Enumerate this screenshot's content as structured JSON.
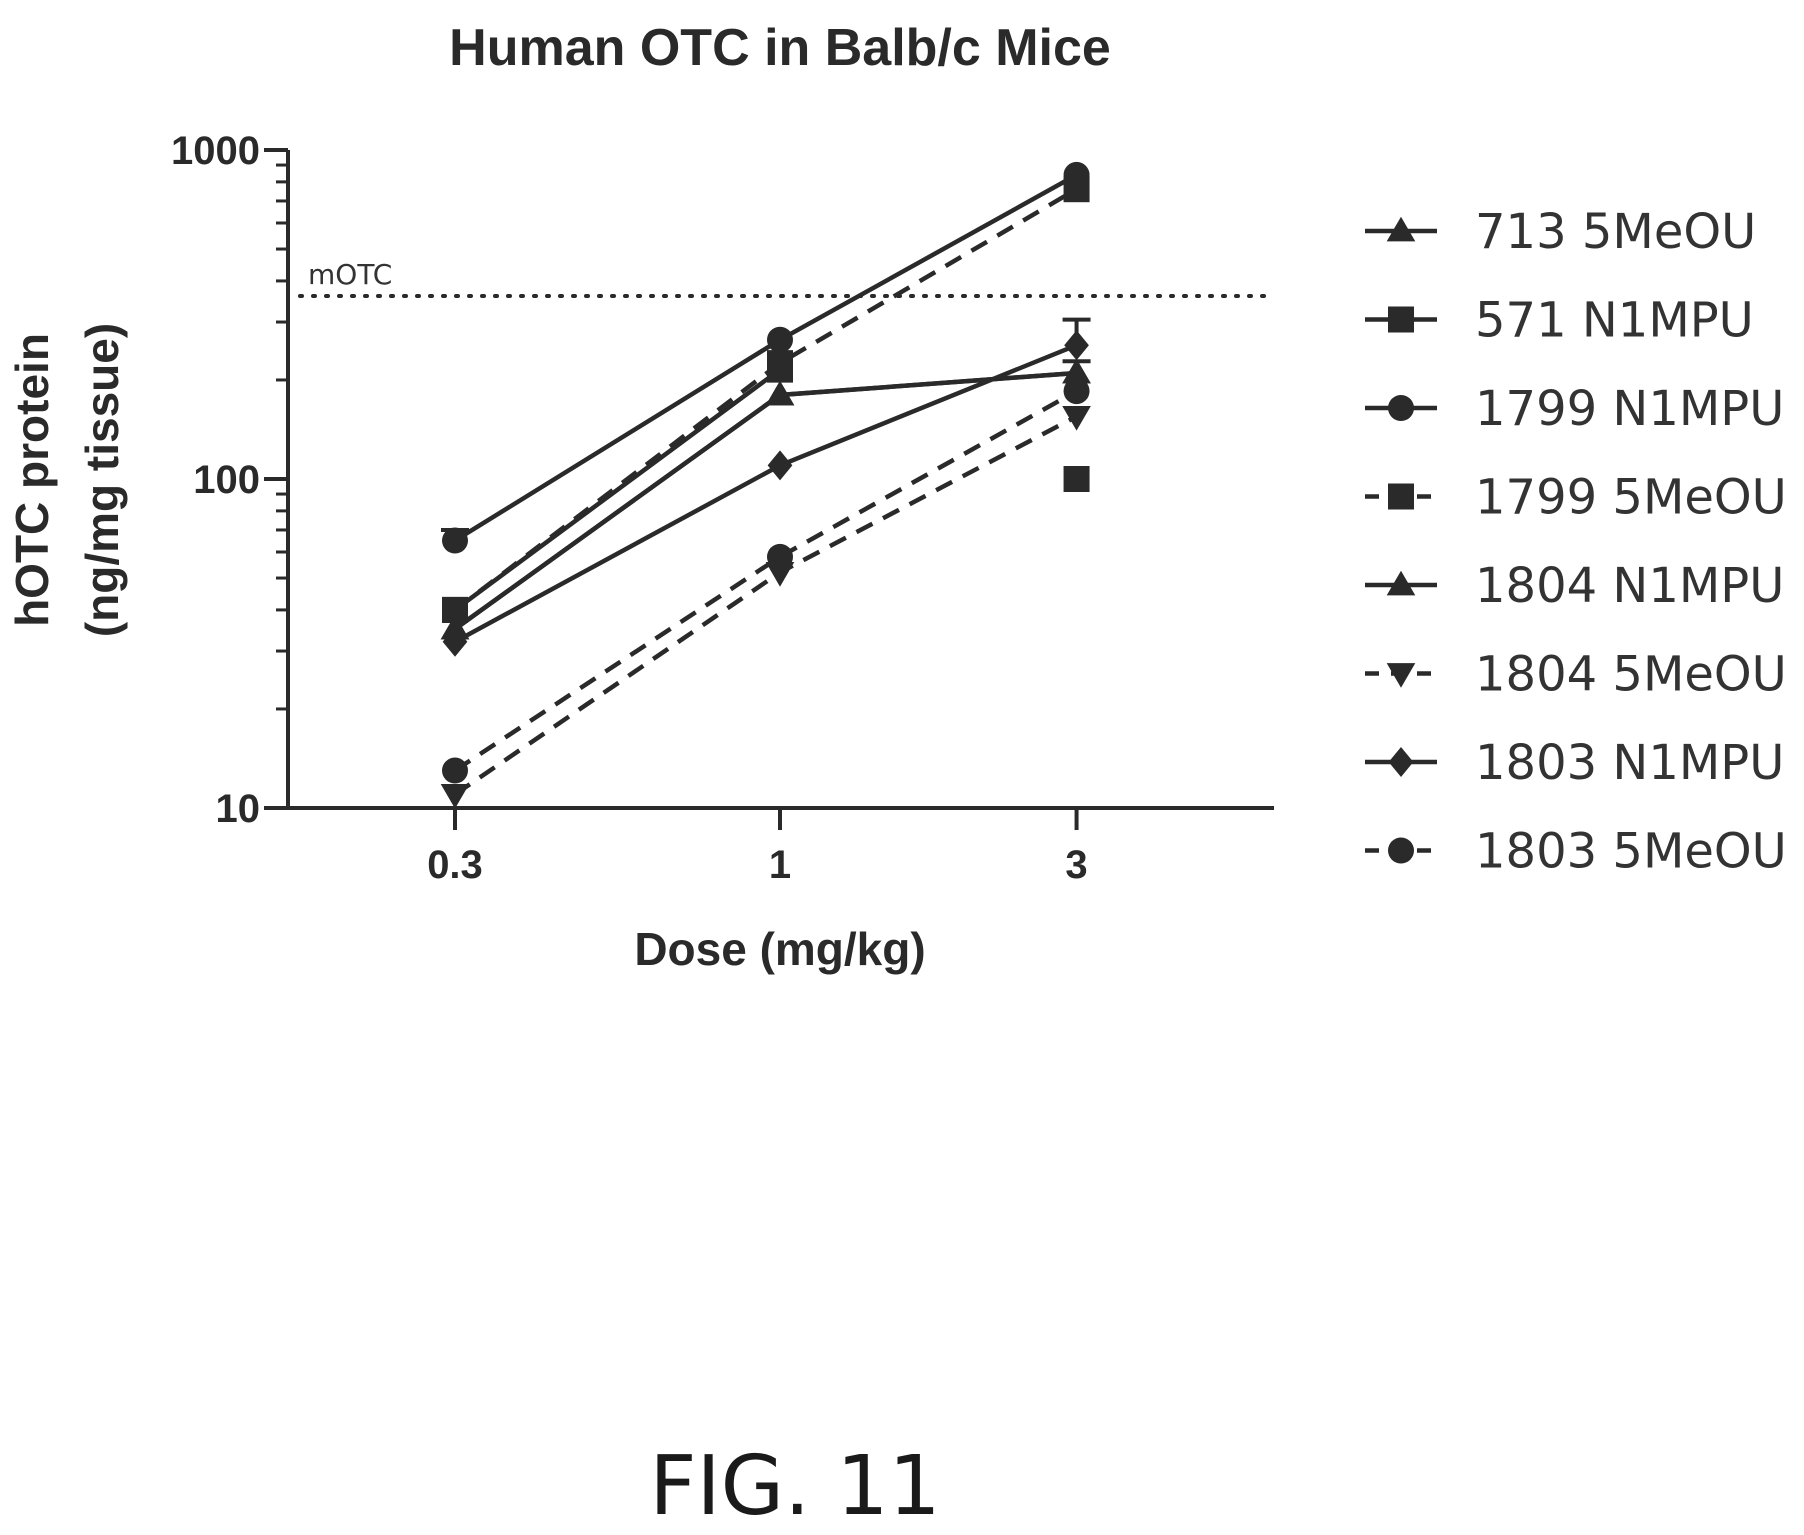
{
  "figure_caption": "FIG. 11",
  "chart_data": {
    "type": "line",
    "title": "Human OTC in Balb/c Mice",
    "xlabel": "Dose (mg/kg)",
    "ylabel_lines": [
      "hOTC protein",
      "(ng/mg tissue)"
    ],
    "x_scale": "log",
    "y_scale": "log",
    "x": [
      0.3,
      1,
      3
    ],
    "x_tick_labels": [
      "0.3",
      "1",
      "3"
    ],
    "y_ticks": [
      10,
      100,
      1000
    ],
    "y_tick_labels": [
      "10",
      "100",
      "1000"
    ],
    "ylim": [
      10,
      1000
    ],
    "grid": false,
    "legend_position": "right",
    "reference_line": {
      "label": "mOTC",
      "y": 360,
      "style": "dotted"
    },
    "series": [
      {
        "name": "713 5MeOU",
        "marker": "triangle-up",
        "dashed": false,
        "values": [
          35,
          180,
          210
        ],
        "error": [
          0,
          0,
          18
        ]
      },
      {
        "name": "571 N1MPU",
        "marker": "square",
        "dashed": false,
        "values": [
          40,
          215,
          100
        ],
        "error": [
          0,
          0,
          0
        ]
      },
      {
        "name": "1799 N1MPU",
        "marker": "circle",
        "dashed": false,
        "values": [
          65,
          265,
          840
        ],
        "error": [
          5,
          0,
          0
        ]
      },
      {
        "name": "1799 5MeOU",
        "marker": "square",
        "dashed": true,
        "values": [
          40,
          225,
          760
        ],
        "error": [
          0,
          0,
          0
        ]
      },
      {
        "name": "1804 N1MPU",
        "marker": "triangle-up",
        "dashed": false,
        "values": [
          35,
          180,
          210
        ],
        "error": [
          0,
          0,
          0
        ]
      },
      {
        "name": "1804 5MeOU",
        "marker": "triangle-down",
        "dashed": true,
        "values": [
          11,
          52,
          155
        ],
        "error": [
          0,
          0,
          0
        ]
      },
      {
        "name": "1803 N1MPU",
        "marker": "diamond",
        "dashed": false,
        "values": [
          32,
          110,
          255
        ],
        "error": [
          0,
          0,
          50
        ]
      },
      {
        "name": "1803 5MeOU",
        "marker": "circle",
        "dashed": true,
        "values": [
          13,
          58,
          185
        ],
        "error": [
          0,
          0,
          0
        ]
      }
    ]
  },
  "colors": {
    "ink": "#2a2a2a",
    "text": "#333333",
    "background": "#ffffff"
  }
}
